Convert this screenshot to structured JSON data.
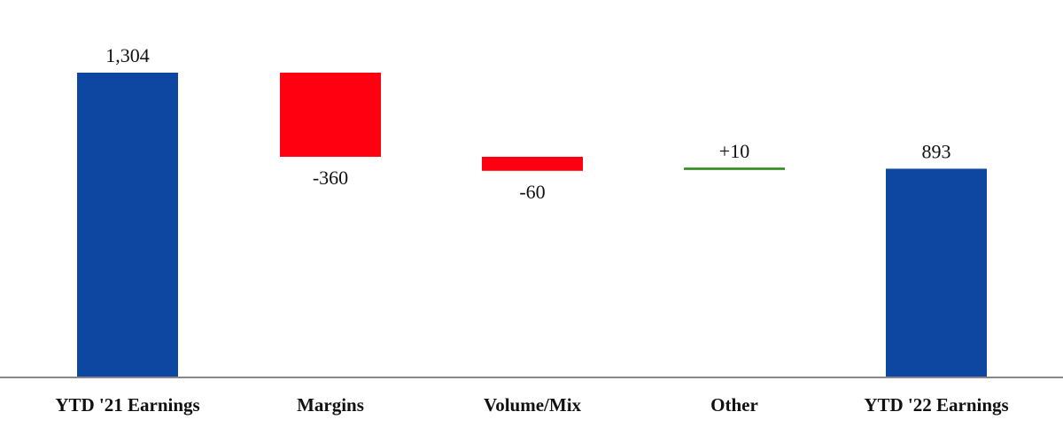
{
  "chart_data": {
    "type": "bar",
    "subtype": "waterfall",
    "categories": [
      "YTD '21 Earnings",
      "Margins",
      "Volume/Mix",
      "Other",
      "YTD '22 Earnings"
    ],
    "values": [
      1304,
      -360,
      -60,
      10,
      893
    ],
    "value_labels": [
      "1,304",
      "-360",
      "-60",
      "+10",
      "893"
    ],
    "kinds": [
      "total",
      "delta",
      "delta",
      "delta",
      "total"
    ],
    "title": "",
    "xlabel": "",
    "ylabel": "",
    "ylim": [
      0,
      1304
    ],
    "grid": false,
    "legend": "none",
    "colors": {
      "total": "#0d47a1",
      "decrease": "#ff0010",
      "increase": "#2e8b1e",
      "axis": "#888888"
    }
  }
}
